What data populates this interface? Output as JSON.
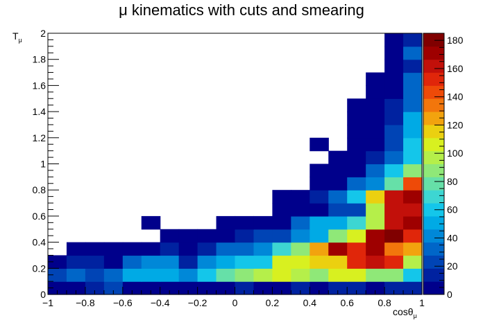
{
  "chart_data": {
    "type": "heatmap",
    "title": "μ kinematics with cuts and smearing",
    "xlabel_main": "cosθ",
    "xlabel_sub": "μ",
    "ylabel_main": "T",
    "ylabel_sub": "μ",
    "xlim": [
      -1,
      1
    ],
    "ylim": [
      0,
      2
    ],
    "x_bin_width": 0.1,
    "y_bin_width": 0.1,
    "x_ticks": [
      "−1",
      "−0.8",
      "−0.6",
      "−0.4",
      "−0.2",
      "0",
      "0.2",
      "0.4",
      "0.6",
      "0.8",
      "1"
    ],
    "y_ticks": [
      "0",
      "0.2",
      "0.4",
      "0.6",
      "0.8",
      "1",
      "1.2",
      "1.4",
      "1.6",
      "1.8",
      "2"
    ],
    "z_range": [
      0,
      185
    ],
    "z_ticks": [
      "0",
      "20",
      "40",
      "60",
      "80",
      "100",
      "120",
      "140",
      "160",
      "180"
    ],
    "grid": false,
    "colorbar": "right",
    "palette": [
      "#00008b",
      "#0022a0",
      "#0044b5",
      "#0066c8",
      "#0088d8",
      "#00aae5",
      "#14c6ea",
      "#3dd6d2",
      "#66e0a8",
      "#8fe878",
      "#b5ef4a",
      "#d8f020",
      "#ebd010",
      "#f2a30e",
      "#f2760c",
      "#ee4a08",
      "#e0260a",
      "#c2100a",
      "#9e0000",
      "#800000"
    ],
    "rows": [
      [
        4,
        9,
        10,
        20,
        9,
        6,
        8,
        6,
        6,
        7,
        13,
        9,
        9,
        11,
        9,
        13,
        18,
        9,
        11,
        14
      ],
      [
        20,
        28,
        26,
        30,
        50,
        52,
        48,
        46,
        62,
        80,
        90,
        100,
        110,
        95,
        90,
        108,
        110,
        88,
        88,
        62
      ],
      [
        6,
        18,
        18,
        8,
        29,
        40,
        40,
        17,
        42,
        52,
        60,
        60,
        102,
        110,
        118,
        115,
        150,
        160,
        150,
        100
      ],
      [
        0,
        4,
        4,
        4,
        4,
        4,
        12,
        4,
        12,
        29,
        28,
        46,
        68,
        88,
        128,
        170,
        155,
        170,
        130,
        124
      ],
      [
        0,
        0,
        0,
        0,
        0,
        0,
        4,
        4,
        4,
        4,
        12,
        20,
        20,
        38,
        48,
        84,
        108,
        172,
        182,
        150
      ],
      [
        0,
        0,
        0,
        0,
        0,
        4,
        0,
        0,
        0,
        4,
        4,
        4,
        4,
        30,
        48,
        48,
        72,
        95,
        162,
        175
      ],
      [
        0,
        0,
        0,
        0,
        0,
        0,
        0,
        0,
        0,
        0,
        0,
        0,
        4,
        4,
        4,
        22,
        24,
        95,
        160,
        165
      ],
      [
        0,
        0,
        0,
        0,
        0,
        0,
        0,
        0,
        0,
        0,
        0,
        0,
        4,
        4,
        12,
        30,
        60,
        120,
        160,
        175
      ],
      [
        0,
        0,
        0,
        0,
        0,
        0,
        0,
        0,
        0,
        0,
        0,
        0,
        0,
        0,
        4,
        4,
        30,
        42,
        82,
        140
      ],
      [
        0,
        0,
        0,
        0,
        0,
        0,
        0,
        0,
        0,
        0,
        0,
        0,
        0,
        0,
        4,
        4,
        4,
        30,
        56,
        90
      ],
      [
        0,
        0,
        0,
        0,
        0,
        0,
        0,
        0,
        0,
        0,
        0,
        0,
        0,
        0,
        0,
        4,
        4,
        12,
        30,
        64
      ],
      [
        0,
        0,
        0,
        0,
        0,
        0,
        0,
        0,
        0,
        0,
        0,
        0,
        0,
        0,
        4,
        0,
        4,
        4,
        20,
        56
      ],
      [
        0,
        0,
        0,
        0,
        0,
        0,
        0,
        0,
        0,
        0,
        0,
        0,
        0,
        0,
        0,
        0,
        4,
        4,
        20,
        48
      ],
      [
        0,
        0,
        0,
        0,
        0,
        0,
        0,
        0,
        0,
        0,
        0,
        0,
        0,
        0,
        0,
        0,
        4,
        4,
        16,
        48
      ],
      [
        0,
        0,
        0,
        0,
        0,
        0,
        0,
        0,
        0,
        0,
        0,
        0,
        0,
        0,
        0,
        0,
        4,
        4,
        12,
        30
      ],
      [
        0,
        0,
        0,
        0,
        0,
        0,
        0,
        0,
        0,
        0,
        0,
        0,
        0,
        0,
        0,
        0,
        0,
        4,
        4,
        30
      ],
      [
        0,
        0,
        0,
        0,
        0,
        0,
        0,
        0,
        0,
        0,
        0,
        0,
        0,
        0,
        0,
        0,
        0,
        4,
        4,
        28
      ],
      [
        0,
        0,
        0,
        0,
        0,
        0,
        0,
        0,
        0,
        0,
        0,
        0,
        0,
        0,
        0,
        0,
        0,
        0,
        4,
        14
      ],
      [
        0,
        0,
        0,
        0,
        0,
        0,
        0,
        0,
        0,
        0,
        0,
        0,
        0,
        0,
        0,
        0,
        0,
        0,
        4,
        36
      ],
      [
        0,
        0,
        0,
        0,
        0,
        0,
        0,
        0,
        0,
        0,
        0,
        0,
        0,
        0,
        0,
        0,
        0,
        0,
        4,
        14
      ]
    ]
  }
}
